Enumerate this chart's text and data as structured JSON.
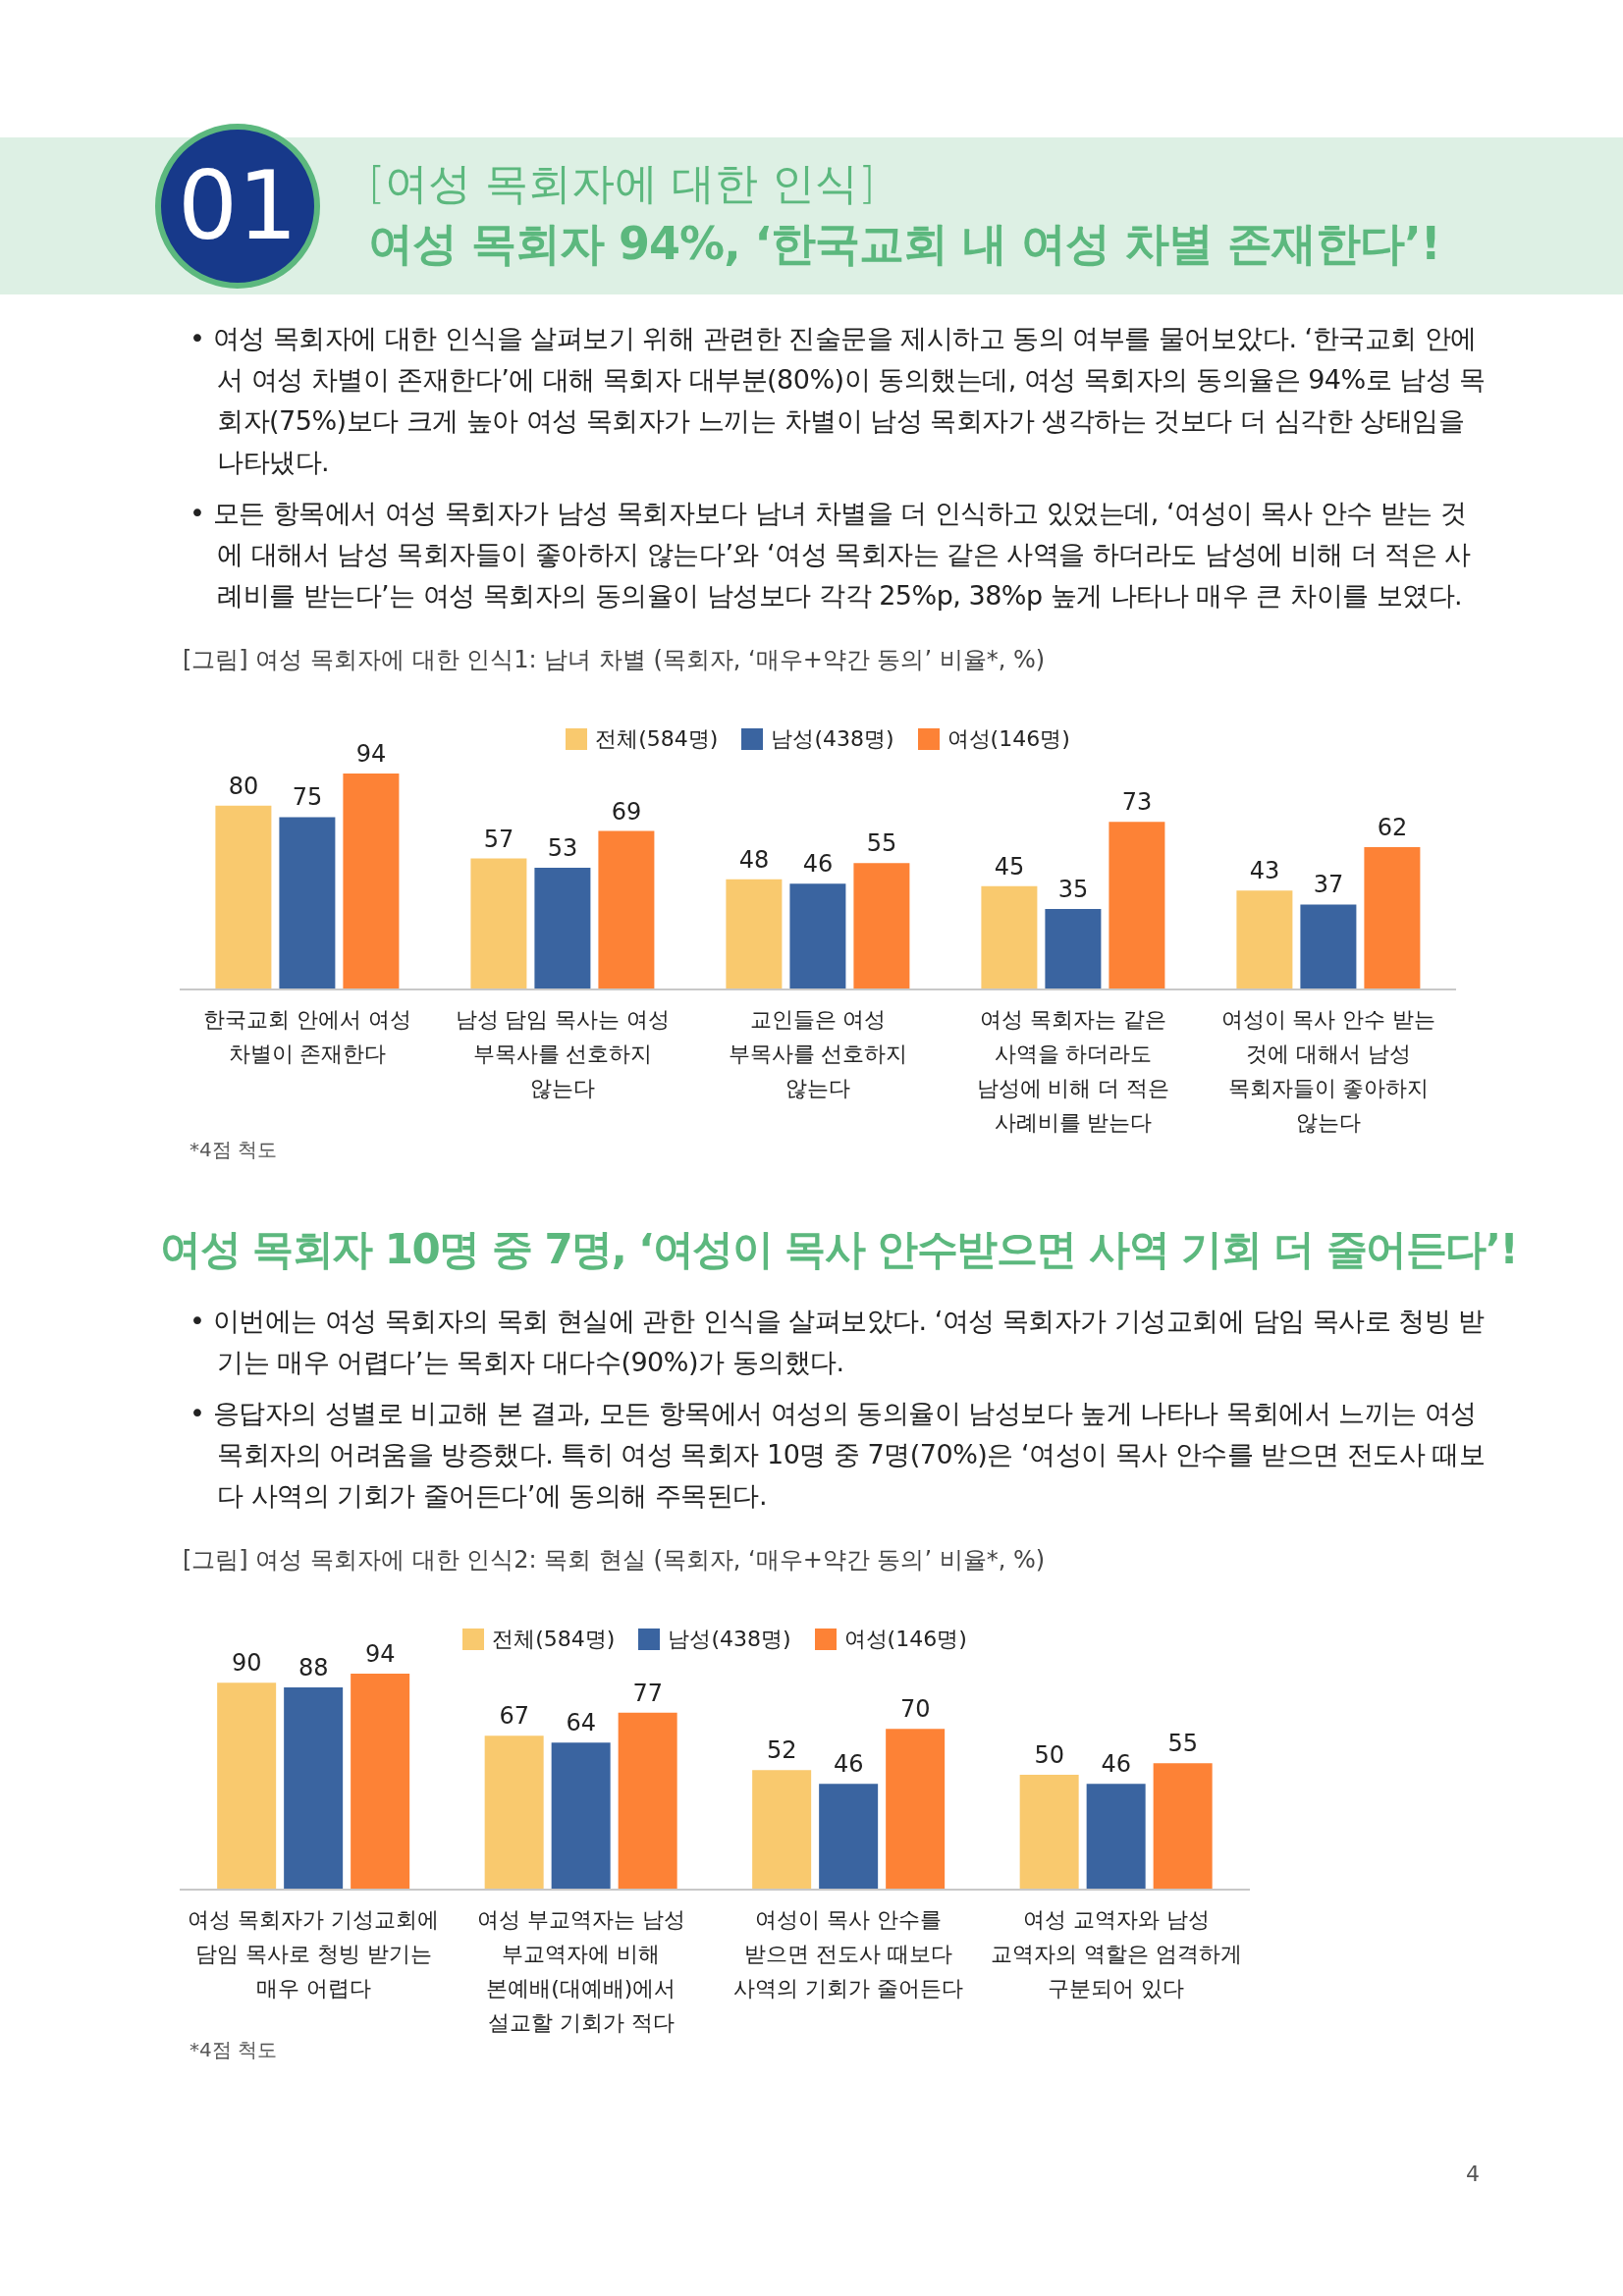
{
  "chart_data": [
    {
      "type": "bar",
      "title": "여성 목회자 94%, ‘한국교회 내 여성 차별 존재한다’!",
      "subtitle": "[그림] 여성 목회자에 대한 인식1: 남녀 차별 (목회자, ‘매우+약간 동의’ 비율*, %)",
      "annotations": [
        "01",
        "[여성 목회자에 대한 인식]",
        "• 여성 목회자에 대한 인식을 살펴보기 위해 관련한 진술문을 제시하고 동의 여부를 물어보았다. ‘한국교회 안에서 여성 차별이 존재한다’에 대해 목회자 대부분(80%)이 동의했는데, 여성 목회자의 동의율은 94%로 남성 목회자(75%)보다 크게 높아 여성 목회자가 느끼는 차별이 남성 목회자가 생각하는 것보다 더 심각한 상태임을 나타냈다.",
        "• 모든 항목에서 여성 목회자가 남성 목회자보다 남녀 차별을 더 인식하고 있었는데, ‘여성이 목사 안수 받는 것에 대해서 남성 목회자들이 좋아하지 않는다’와 ‘여성 목회자는 같은 사역을 하더라도 남성에 비해 더 적은 사례비를 받는다’는 여성 목회자의 동의율이 남성보다 각각 25%p, 38%p 높게 나타나 매우 큰 차이를 보였다.",
        "*4점 척도"
      ],
      "categories": [
        "한국교회 안에서 여성 차별이 존재한다",
        "남성 담임 목사는 여성 부목사를 선호하지 않는다",
        "교인들은 여성 부목사를 선호하지 않는다",
        "여성 목회자는 같은 사역을 하더라도 남성에 비해 더 적은 사례비를 받는다",
        "여성이 목사 안수 받는 것에 대해서 남성 목회자들이 좋아하지 않는다"
      ],
      "series": [
        {
          "name": "전체(584명)",
          "color": "#f9c96e",
          "values": [
            80,
            57,
            48,
            45,
            43
          ]
        },
        {
          "name": "남성(438명)",
          "color": "#3a64a0",
          "values": [
            75,
            53,
            46,
            35,
            37
          ]
        },
        {
          "name": "여성(146명)",
          "color": "#fd8236",
          "values": [
            94,
            69,
            55,
            73,
            62
          ]
        }
      ],
      "data_labels": true,
      "legend": "top"
    },
    {
      "type": "bar",
      "title": "여성 목회자 10명 중 7명, ‘여성이 목사 안수받으면 사역 기회 더 줄어든다’!",
      "subtitle": "[그림] 여성 목회자에 대한 인식2: 목회 현실 (목회자, ‘매우+약간 동의’ 비율*, %)",
      "annotations": [
        "• 이번에는 여성 목회자의 목회 현실에 관한 인식을 살펴보았다. ‘여성 목회자가 기성교회에 담임 목사로 청빙 받기는 매우 어렵다’는 목회자 대다수(90%)가 동의했다.",
        "• 응답자의 성별로 비교해 본 결과, 모든 항목에서 여성의 동의율이 남성보다 높게 나타나 목회에서 느끼는 여성 목회자의 어려움을 방증했다. 특히 여성 목회자 10명 중 7명(70%)은 ‘여성이 목사 안수를 받으면 전도사 때보다 사역의 기회가 줄어든다’에 동의해 주목된다.",
        "*4점 척도",
        "4"
      ],
      "categories": [
        "여성 목회자가 기성교회에 담임 목사로 청빙 받기는 매우 어렵다",
        "여성 부교역자는 남성 부교역자에 비해 본예배(대예배)에서 설교할 기회가 적다",
        "여성이 목사 안수를 받으면 전도사 때보다 사역의 기회가 줄어든다",
        "여성 교역자와 남성 교역자의 역할은 엄격하게 구분되어 있다"
      ],
      "series": [
        {
          "name": "전체(584명)",
          "color": "#f9c96e",
          "values": [
            90,
            67,
            52,
            50
          ]
        },
        {
          "name": "남성(438명)",
          "color": "#3a64a0",
          "values": [
            88,
            64,
            46,
            46
          ]
        },
        {
          "name": "여성(146명)",
          "color": "#fd8236",
          "values": [
            94,
            77,
            70,
            55
          ]
        }
      ],
      "data_labels": true,
      "legend": "top"
    }
  ]
}
